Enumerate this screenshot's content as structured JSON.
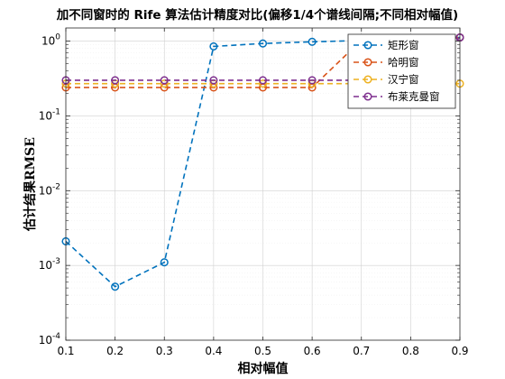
{
  "chart_data": {
    "type": "line",
    "title": "加不同窗时的 Rife 算法估计精度对比(偏移1/4个谱线间隔;不同相对幅值)",
    "xlabel": "相对幅值",
    "ylabel": "估计结果RMSE",
    "x": [
      0.1,
      0.2,
      0.3,
      0.4,
      0.5,
      0.6,
      0.7,
      0.8,
      0.9
    ],
    "xlim": [
      0.1,
      0.9
    ],
    "ylim": [
      0.0001,
      1.5
    ],
    "yscale": "log",
    "x_ticks": [
      "0.1",
      "0.2",
      "0.3",
      "0.4",
      "0.5",
      "0.6",
      "0.7",
      "0.8",
      "0.9"
    ],
    "y_ticks": [
      {
        "base": "10",
        "exp": "-4"
      },
      {
        "base": "10",
        "exp": "-3"
      },
      {
        "base": "10",
        "exp": "-2"
      },
      {
        "base": "10",
        "exp": "-1"
      },
      {
        "base": "10",
        "exp": "0"
      }
    ],
    "grid": true,
    "legend_position": "top-right",
    "series": [
      {
        "name": "矩形窗",
        "color": "#0072BD",
        "values": [
          0.0021,
          0.00052,
          0.0011,
          0.85,
          0.93,
          0.98,
          1.02,
          1.06,
          1.12
        ]
      },
      {
        "name": "哈明窗",
        "color": "#D95319",
        "values": [
          0.24,
          0.24,
          0.24,
          0.24,
          0.24,
          0.24,
          1.03,
          1.06,
          1.12
        ]
      },
      {
        "name": "汉宁窗",
        "color": "#EDB120",
        "values": [
          0.27,
          0.27,
          0.27,
          0.27,
          0.27,
          0.27,
          0.27,
          0.27,
          0.27
        ]
      },
      {
        "name": "布莱克曼窗",
        "color": "#7E2F8E",
        "values": [
          0.3,
          0.3,
          0.3,
          0.3,
          0.3,
          0.3,
          0.3,
          0.3,
          1.12
        ]
      }
    ]
  }
}
